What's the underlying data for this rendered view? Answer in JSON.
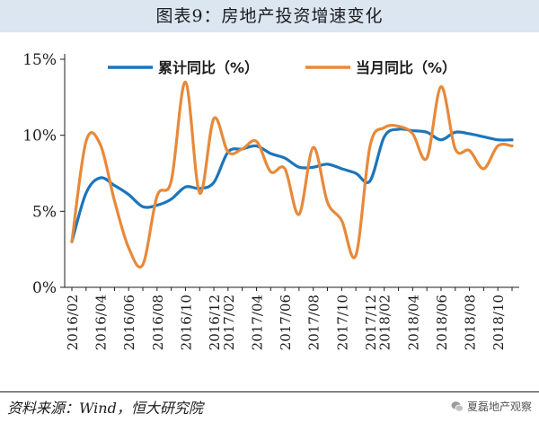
{
  "figure": {
    "title": "图表9：房地产投资增速变化",
    "source": "资料来源：Wind，恒大研究院",
    "watermark": "夏磊地产观察"
  },
  "colors": {
    "title_bg": "#dbe6f1",
    "series_cumulative": "#1b75bc",
    "series_monthly": "#e8893a",
    "axis": "#1c1c1c"
  },
  "chart_data": {
    "type": "line",
    "title": "",
    "xlabel": "",
    "ylabel": "",
    "ylim": [
      0,
      15
    ],
    "yticks": [
      "0%",
      "5%",
      "10%",
      "15%"
    ],
    "legend_position": "top",
    "grid": false,
    "x": [
      "2016/02",
      "2016/03",
      "2016/04",
      "2016/05",
      "2016/06",
      "2016/07",
      "2016/08",
      "2016/09",
      "2016/10",
      "2016/11",
      "2016/12",
      "2017/02",
      "2017/03",
      "2017/04",
      "2017/05",
      "2017/06",
      "2017/07",
      "2017/08",
      "2017/09",
      "2017/10",
      "2017/11",
      "2017/12",
      "2018/02",
      "2018/03",
      "2018/04",
      "2018/05",
      "2018/06",
      "2018/07",
      "2018/08",
      "2018/09",
      "2018/10",
      "2018/11"
    ],
    "xticklabels": [
      "2016/02",
      "2016/04",
      "2016/06",
      "2016/08",
      "2016/10",
      "2016/12",
      "2017/02",
      "2017/04",
      "2017/06",
      "2017/08",
      "2017/10",
      "2017/12",
      "2018/02",
      "2018/04",
      "2018/06",
      "2018/08",
      "2018/10"
    ],
    "series": [
      {
        "name": "累计同比（%）",
        "values": [
          3.0,
          6.2,
          7.2,
          6.7,
          6.1,
          5.3,
          5.4,
          5.8,
          6.6,
          6.5,
          6.9,
          8.9,
          9.1,
          9.3,
          8.8,
          8.5,
          7.9,
          7.9,
          8.1,
          7.8,
          7.5,
          7.0,
          9.9,
          10.4,
          10.3,
          10.2,
          9.7,
          10.2,
          10.1,
          9.9,
          9.7,
          9.7
        ]
      },
      {
        "name": "当月同比（%）",
        "values": [
          3.0,
          9.6,
          9.4,
          5.7,
          2.6,
          1.5,
          6.0,
          7.0,
          13.5,
          6.2,
          11.1,
          8.9,
          9.1,
          9.6,
          7.6,
          7.8,
          4.8,
          9.2,
          5.6,
          4.4,
          2.1,
          9.3,
          10.5,
          10.6,
          10.1,
          8.5,
          13.2,
          9.1,
          9.0,
          7.8,
          9.3,
          9.3
        ]
      }
    ]
  }
}
